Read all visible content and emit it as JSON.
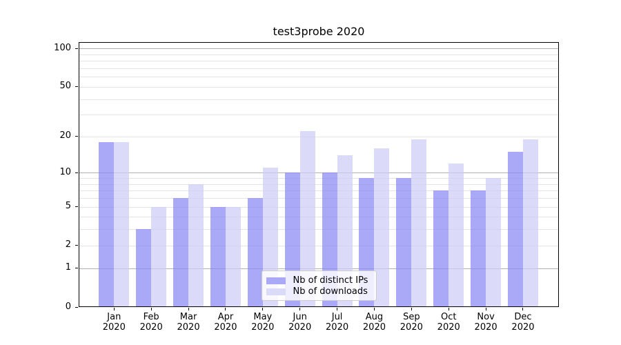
{
  "title": "test3probe 2020",
  "chart_data": {
    "type": "bar",
    "title": "test3probe 2020",
    "categories": [
      "Jan",
      "Feb",
      "Mar",
      "Apr",
      "May",
      "Jun",
      "Jul",
      "Aug",
      "Sep",
      "Oct",
      "Nov",
      "Dec"
    ],
    "year": "2020",
    "series": [
      {
        "name": "Nb of distinct IPs",
        "values": [
          18,
          3,
          6,
          5,
          6,
          10,
          10,
          9,
          9,
          7,
          7,
          15
        ],
        "fill_rgba": "rgba(137,136,245,0.72)",
        "swatch_color": "#aaa9f8"
      },
      {
        "name": "Nb of downloads",
        "values": [
          18,
          5,
          8,
          5,
          11,
          22,
          14,
          16,
          19,
          12,
          9,
          19
        ],
        "fill_rgba": "rgba(205,204,247,0.72)",
        "swatch_color": "#dbdaf9"
      }
    ],
    "y_axis": {
      "scale": "log1p",
      "tick_values": [
        0,
        1,
        2,
        5,
        10,
        20,
        50,
        100
      ],
      "tick_labels": [
        "0",
        "1",
        "2",
        "5",
        "10",
        "20",
        "50",
        "100"
      ],
      "major_gridlines": [
        1,
        10,
        100
      ],
      "minor_gridlines": [
        2,
        3,
        4,
        5,
        6,
        7,
        8,
        9,
        20,
        30,
        40,
        50,
        60,
        70,
        80,
        90
      ],
      "top_value": 100
    },
    "legend": {
      "position": "lower center",
      "entries": [
        "Nb of distinct IPs",
        "Nb of downloads"
      ]
    },
    "grid": true,
    "colors": {
      "major_grid": "#b0b0b0",
      "minor_grid": "#e4e4e4",
      "frame": "#000000",
      "background": "#ffffff"
    }
  }
}
